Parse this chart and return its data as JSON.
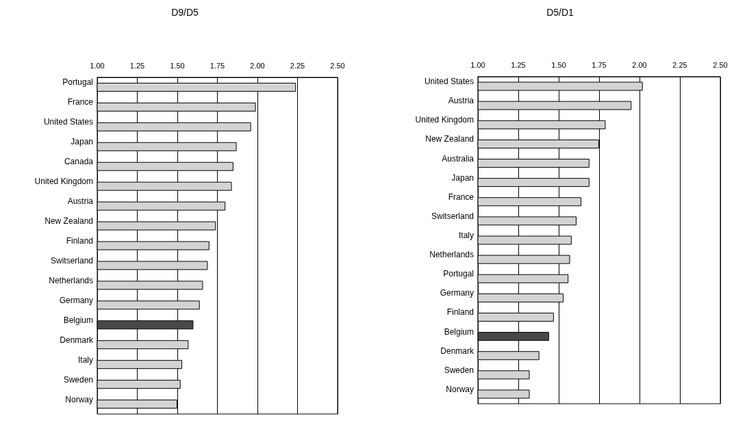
{
  "chart_data": [
    {
      "type": "bar",
      "title": "D9/D5",
      "orientation": "horizontal",
      "categories": [
        "Portugal",
        "France",
        "United States",
        "Japan",
        "Canada",
        "United Kingdom",
        "Austria",
        "New Zealand",
        "Finland",
        "Switserland",
        "Netherlands",
        "Germany",
        "Belgium",
        "Denmark",
        "Italy",
        "Sweden",
        "Norway"
      ],
      "values": [
        2.24,
        1.99,
        1.96,
        1.87,
        1.85,
        1.84,
        1.8,
        1.74,
        1.7,
        1.69,
        1.66,
        1.64,
        1.6,
        1.57,
        1.53,
        1.52,
        1.5
      ],
      "colors": [
        "#d3d3d3",
        "#d3d3d3",
        "#d3d3d3",
        "#d3d3d3",
        "#d3d3d3",
        "#d3d3d3",
        "#d3d3d3",
        "#d3d3d3",
        "#d3d3d3",
        "#d3d3d3",
        "#d3d3d3",
        "#d3d3d3",
        "#484848",
        "#d3d3d3",
        "#d3d3d3",
        "#d3d3d3",
        "#d3d3d3"
      ],
      "xlim": [
        1,
        2.5
      ],
      "xticks": [
        {
          "value": 1,
          "label": "1.00"
        },
        {
          "value": 1.25,
          "label": "1.25"
        },
        {
          "value": 1.5,
          "label": "1.50"
        },
        {
          "value": 1.75,
          "label": "1.75"
        },
        {
          "value": 2,
          "label": "2.00"
        },
        {
          "value": 2.25,
          "label": "2.25"
        },
        {
          "value": 2.5,
          "label": "2.50"
        }
      ],
      "grid": "x"
    },
    {
      "type": "bar",
      "title": "D5/D1",
      "orientation": "horizontal",
      "categories": [
        "United States",
        "Austria",
        "United Kingdom",
        "New Zealand",
        "Australia",
        "Japan",
        "France",
        "Switserland",
        "Italy",
        "Netherlands",
        "Portugal",
        "Germany",
        "Finland",
        "Belgium",
        "Denmark",
        "Sweden",
        "Norway"
      ],
      "values": [
        2.02,
        1.95,
        1.79,
        1.75,
        1.69,
        1.69,
        1.64,
        1.61,
        1.58,
        1.57,
        1.56,
        1.53,
        1.47,
        1.44,
        1.38,
        1.32,
        1.32
      ],
      "colors": [
        "#d3d3d3",
        "#d3d3d3",
        "#d3d3d3",
        "#d3d3d3",
        "#d3d3d3",
        "#d3d3d3",
        "#d3d3d3",
        "#d3d3d3",
        "#d3d3d3",
        "#d3d3d3",
        "#d3d3d3",
        "#d3d3d3",
        "#d3d3d3",
        "#484848",
        "#d3d3d3",
        "#d3d3d3",
        "#d3d3d3"
      ],
      "xlim": [
        1,
        2.5
      ],
      "xticks": [
        {
          "value": 1,
          "label": "1.00"
        },
        {
          "value": 1.25,
          "label": "1.25"
        },
        {
          "value": 1.5,
          "label": "1.50"
        },
        {
          "value": 1.75,
          "label": "1.75"
        },
        {
          "value": 2,
          "label": "2.00"
        },
        {
          "value": 2.25,
          "label": "2.25"
        },
        {
          "value": 2.5,
          "label": "2.50"
        }
      ],
      "grid": "x"
    }
  ]
}
